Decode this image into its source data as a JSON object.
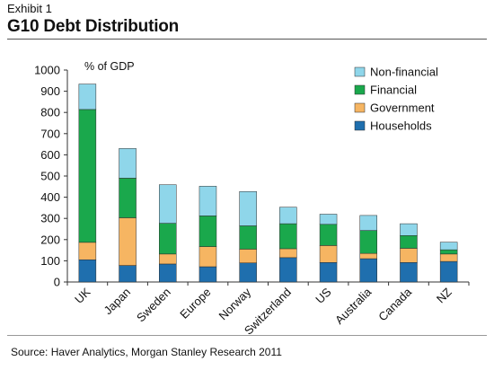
{
  "header": {
    "exhibit": "Exhibit 1",
    "title": "G10 Debt Distribution"
  },
  "footer": {
    "source": "Source: Haver Analytics, Morgan Stanley Research 2011"
  },
  "chart_data": {
    "type": "bar",
    "stacked": true,
    "ylabel": "% of GDP",
    "ylim": [
      0,
      1000
    ],
    "yticks": [
      0,
      100,
      200,
      300,
      400,
      500,
      600,
      700,
      800,
      900,
      1000
    ],
    "grid": false,
    "legend_position": "top-right",
    "categories": [
      "UK",
      "Japan",
      "Sweden",
      "Europe",
      "Norway",
      "Switzerland",
      "US",
      "Australia",
      "Canada",
      "NZ"
    ],
    "series": [
      {
        "name": "Households",
        "color": "#1f6fae",
        "values": [
          105,
          78,
          85,
          72,
          90,
          115,
          92,
          110,
          92,
          97
        ]
      },
      {
        "name": "Government",
        "color": "#f6b562",
        "values": [
          82,
          225,
          47,
          95,
          65,
          42,
          80,
          25,
          67,
          35
        ]
      },
      {
        "name": "Financial",
        "color": "#1aa84c",
        "values": [
          627,
          187,
          145,
          145,
          110,
          118,
          100,
          108,
          60,
          20
        ]
      },
      {
        "name": "Non-financial",
        "color": "#8fd6ea",
        "values": [
          120,
          140,
          182,
          140,
          162,
          78,
          48,
          71,
          56,
          36
        ]
      }
    ],
    "legend_order": [
      "Non-financial",
      "Financial",
      "Government",
      "Households"
    ]
  }
}
